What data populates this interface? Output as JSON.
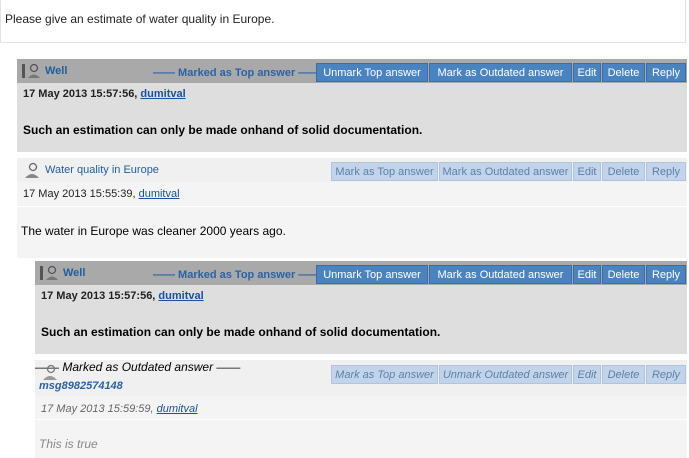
{
  "question": "Please give an estimate of water quality in Europe.",
  "posts": [
    {
      "title": "Well",
      "marked": "—— Marked as Top answer ——",
      "buttons": [
        "Unmark Top answer",
        "Mark as Outdated answer",
        "Edit",
        "Delete",
        "Reply"
      ],
      "date": "17 May 2013 15:57:56, ",
      "author": "dumitval",
      "body": "Such an estimation can only be made onhand of solid documentation."
    },
    {
      "title": "Water quality in Europe",
      "buttons": [
        "Mark as Top answer",
        "Mark as Outdated answer",
        "Edit",
        "Delete",
        "Reply"
      ],
      "date": "17 May 2013 15:55:39, ",
      "author": "dumitval",
      "body": "The water in Europe was cleaner 2000 years ago."
    },
    {
      "title": "Well",
      "marked": "—— Marked as Top answer ——",
      "buttons": [
        "Unmark Top answer",
        "Mark as Outdated answer",
        "Edit",
        "Delete",
        "Reply"
      ],
      "date": "17 May 2013 15:57:56, ",
      "author": "dumitval",
      "body": "Such an estimation can only be made onhand of solid documentation."
    },
    {
      "title": "msg8982574148",
      "marked": "—— Marked as Outdated answer ——",
      "buttons": [
        "Mark as Top answer",
        "Unmark Outdated answer",
        "Edit",
        "Delete",
        "Reply"
      ],
      "date": "17 May 2013 15:59:59, ",
      "author": "dumitval",
      "body": "This is true"
    }
  ]
}
